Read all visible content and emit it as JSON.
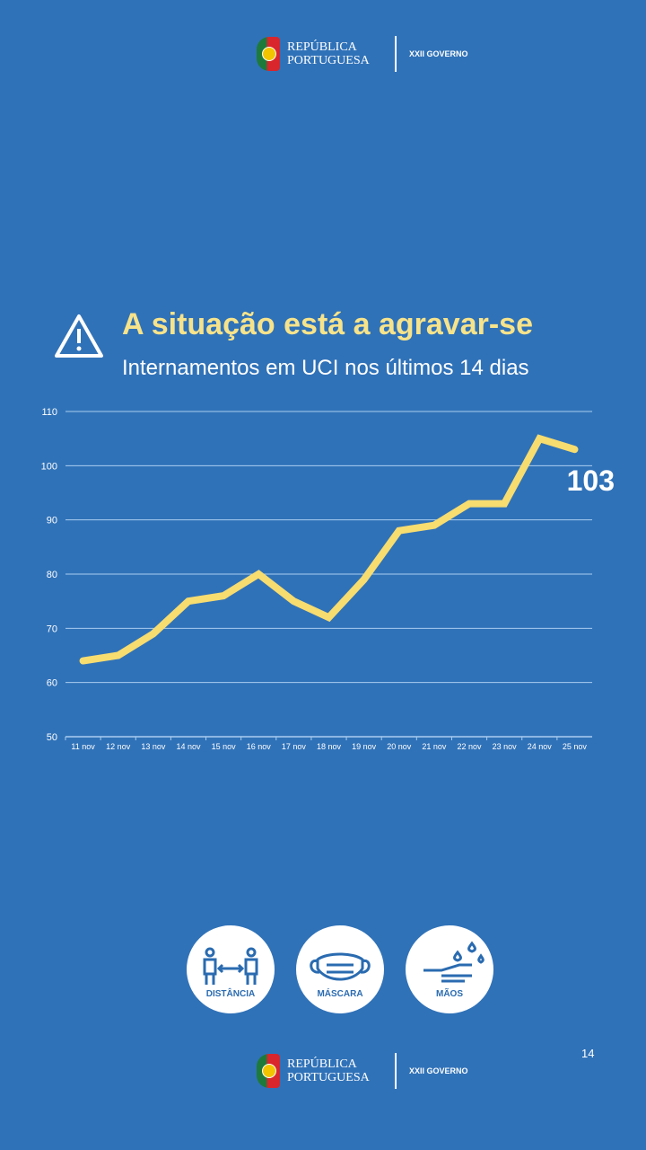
{
  "header": {
    "logo_text_1": "REPÚBLICA",
    "logo_text_2": "PORTUGUESA",
    "government": "XXII GOVERNO"
  },
  "title": "A situação está a agravar-se",
  "subtitle": "Internamentos em UCI nos últimos 14 dias",
  "chart_data": {
    "type": "line",
    "categories": [
      "11 nov",
      "12 nov",
      "13 nov",
      "14 nov",
      "15 nov",
      "16 nov",
      "17 nov",
      "18 nov",
      "19 nov",
      "20 nov",
      "21 nov",
      "22 nov",
      "23 nov",
      "24 nov",
      "25 nov"
    ],
    "values": [
      64,
      65,
      69,
      75,
      76,
      80,
      75,
      72,
      79,
      88,
      89,
      93,
      93,
      105,
      103
    ],
    "ylim": [
      50,
      110
    ],
    "yticks": [
      50,
      60,
      70,
      80,
      90,
      100,
      110
    ],
    "grid": true,
    "line_color": "#f7dc6f",
    "annotation": "103"
  },
  "icons": [
    {
      "name": "distance-icon",
      "label": "DISTÂNCIA"
    },
    {
      "name": "mask-icon",
      "label": "MÁSCARA"
    },
    {
      "name": "hands-icon",
      "label": "MÃOS"
    }
  ],
  "page_number": "14"
}
